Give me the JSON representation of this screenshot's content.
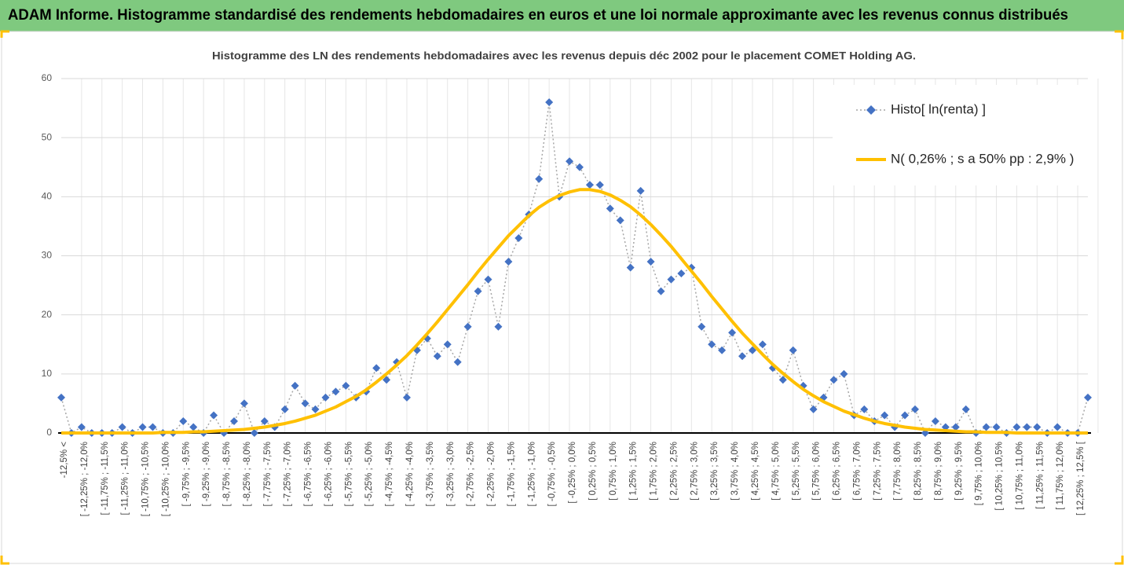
{
  "chart_data": {
    "type": "line",
    "title": "ADAM Informe. Histogramme standardisé des rendements hebdomadaires en euros et une loi normale approximante avec les revenus connus distribués",
    "subtitle": "Histogramme des LN des rendements hebdomadaires avec les revenus depuis déc 2002 pour le placement COMET Holding AG.",
    "categories": [
      "-12,5% <",
      null,
      "[ -12,25% ; -12,0%",
      null,
      "[ -11,75% ; -11,5%",
      null,
      "[ -11,25% ; -11,0%",
      null,
      "[ -10,75% ; -10,5%",
      null,
      "[ -10,25% ; -10,0%",
      null,
      "[ -9,75% ; -9,5%",
      null,
      "[ -9,25% ; -9,0%",
      null,
      "[ -8,75% ; -8,5%",
      null,
      "[ -8,25% ; -8,0%",
      null,
      "[ -7,75% ; -7,5%",
      null,
      "[ -7,25% ; -7,0%",
      null,
      "[ -6,75% ; -6,5%",
      null,
      "[ -6,25% ; -6,0%",
      null,
      "[ -5,75% ; -5,5%",
      null,
      "[ -5,25% ; -5,0%",
      null,
      "[ -4,75% ; -4,5%",
      null,
      "[ -4,25% ; -4,0%",
      null,
      "[ -3,75% ; -3,5%",
      null,
      "[ -3,25% ; -3,0%",
      null,
      "[ -2,75% ; -2,5%",
      null,
      "[ -2,25% ; -2,0%",
      null,
      "[ -1,75% ; -1,5%",
      null,
      "[ -1,25% ; -1,0%",
      null,
      "[ -0,75% ; -0,5%",
      null,
      "[ -0,25% ; 0,0%",
      null,
      "[ 0,25% ; 0,5%",
      null,
      "[ 0,75% ; 1,0%",
      null,
      "[ 1,25% ; 1,5%",
      null,
      "[ 1,75% ; 2,0%",
      null,
      "[ 2,25% ; 2,5%",
      null,
      "[ 2,75% ; 3,0%",
      null,
      "[ 3,25% ; 3,5%",
      null,
      "[ 3,75% ; 4,0%",
      null,
      "[ 4,25% ; 4,5%",
      null,
      "[ 4,75% ; 5,0%",
      null,
      "[ 5,25% ; 5,5%",
      null,
      "[ 5,75% ; 6,0%",
      null,
      "[ 6,25% ; 6,5%",
      null,
      "[ 6,75% ; 7,0%",
      null,
      "[ 7,25% ; 7,5%",
      null,
      "[ 7,75% ; 8,0%",
      null,
      "[ 8,25% ; 8,5%",
      null,
      "[ 8,75% ; 9,0%",
      null,
      "[ 9,25% ; 9,5%",
      null,
      "[ 9,75% ; 10,0%",
      null,
      "[ 10,25% ; 10,5%",
      null,
      "[ 10,75% ; 11,0%",
      null,
      "[ 11,25% ; 11,5%",
      null,
      "[ 11,75% ; 12,0%",
      null,
      "[ 12,25% ; 12,5% [",
      null
    ],
    "series": [
      {
        "name": "Histo[ ln(renta) ]",
        "color": "#4472c4",
        "line_color": "#a6a6a6",
        "line_style": "dotted",
        "marker": "diamond",
        "values": [
          6,
          0,
          1,
          0,
          0,
          0,
          1,
          0,
          1,
          1,
          0,
          0,
          2,
          1,
          0,
          3,
          0,
          2,
          5,
          0,
          2,
          1,
          4,
          8,
          5,
          4,
          6,
          7,
          8,
          6,
          7,
          11,
          9,
          12,
          6,
          14,
          16,
          13,
          15,
          12,
          18,
          24,
          26,
          18,
          29,
          33,
          37,
          43,
          56,
          40,
          46,
          45,
          42,
          42,
          38,
          36,
          28,
          41,
          29,
          24,
          26,
          27,
          28,
          18,
          15,
          14,
          17,
          13,
          14,
          15,
          11,
          9,
          14,
          8,
          4,
          6,
          9,
          10,
          3,
          4,
          2,
          3,
          1,
          3,
          4,
          0,
          2,
          1,
          1,
          4,
          0,
          1,
          1,
          0,
          1,
          1,
          1,
          0,
          1,
          0,
          0,
          6
        ]
      },
      {
        "name": "N( 0,26% ; s a 50% pp : 2,9% )",
        "color": "#ffc000",
        "line_style": "solid",
        "values": [
          0.0,
          0.0,
          0.0,
          0.0,
          0.0,
          0.0,
          0.0,
          0.0,
          0.0,
          0.0,
          0.1,
          0.1,
          0.1,
          0.2,
          0.2,
          0.3,
          0.4,
          0.5,
          0.6,
          0.8,
          1.0,
          1.3,
          1.6,
          2.0,
          2.5,
          3.0,
          3.7,
          4.4,
          5.3,
          6.2,
          7.3,
          8.6,
          10.0,
          11.5,
          13.1,
          14.9,
          16.8,
          18.8,
          20.9,
          23.0,
          25.1,
          27.3,
          29.4,
          31.4,
          33.4,
          35.1,
          36.8,
          38.2,
          39.3,
          40.2,
          40.8,
          41.2,
          41.2,
          40.9,
          40.3,
          39.4,
          38.3,
          36.9,
          35.3,
          33.5,
          31.6,
          29.5,
          27.4,
          25.3,
          23.1,
          21.0,
          18.9,
          16.9,
          15.1,
          13.3,
          11.6,
          10.1,
          8.7,
          7.4,
          6.3,
          5.3,
          4.5,
          3.7,
          3.1,
          2.5,
          2.0,
          1.6,
          1.3,
          1.0,
          0.8,
          0.6,
          0.5,
          0.4,
          0.3,
          0.2,
          0.2,
          0.1,
          0.1,
          0.1,
          0.0,
          0.0,
          0.0,
          0.0,
          0.0,
          0.0,
          0.0,
          0.0
        ]
      }
    ],
    "ylim": [
      0,
      60
    ],
    "yticks": [
      0,
      10,
      20,
      30,
      40,
      50,
      60
    ],
    "grid": true,
    "legend": "upper right"
  }
}
